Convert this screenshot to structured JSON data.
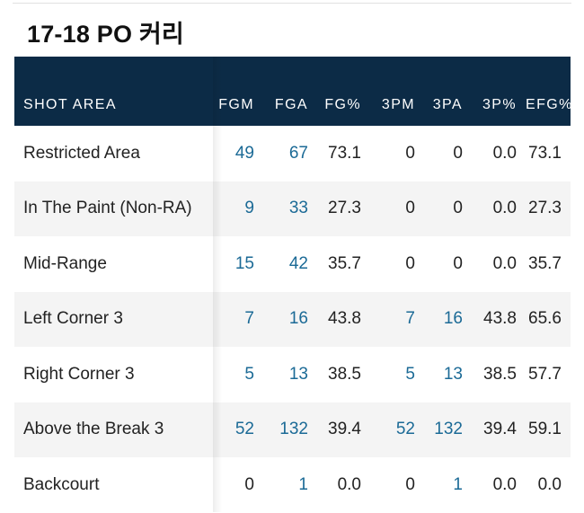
{
  "title": "17-18 PO 커리",
  "table": {
    "headers": [
      "SHOT AREA",
      "FGM",
      "FGA",
      "FG%",
      "3PM",
      "3PA",
      "3P%",
      "EFG%"
    ],
    "rows": [
      {
        "area": "Restricted Area",
        "fgm": "49",
        "fga": "67",
        "fg_pct": "73.1",
        "tpm": "0",
        "tpa": "0",
        "tp_pct": "0.0",
        "efg_pct": "73.1"
      },
      {
        "area": "In The Paint (Non-RA)",
        "fgm": "9",
        "fga": "33",
        "fg_pct": "27.3",
        "tpm": "0",
        "tpa": "0",
        "tp_pct": "0.0",
        "efg_pct": "27.3"
      },
      {
        "area": "Mid-Range",
        "fgm": "15",
        "fga": "42",
        "fg_pct": "35.7",
        "tpm": "0",
        "tpa": "0",
        "tp_pct": "0.0",
        "efg_pct": "35.7"
      },
      {
        "area": "Left Corner 3",
        "fgm": "7",
        "fga": "16",
        "fg_pct": "43.8",
        "tpm": "7",
        "tpa": "16",
        "tp_pct": "43.8",
        "efg_pct": "65.6"
      },
      {
        "area": "Right Corner 3",
        "fgm": "5",
        "fga": "13",
        "fg_pct": "38.5",
        "tpm": "5",
        "tpa": "13",
        "tp_pct": "38.5",
        "efg_pct": "57.7"
      },
      {
        "area": "Above the Break 3",
        "fgm": "52",
        "fga": "132",
        "fg_pct": "39.4",
        "tpm": "52",
        "tpa": "132",
        "tp_pct": "39.4",
        "efg_pct": "59.1"
      },
      {
        "area": "Backcourt",
        "fgm": "0",
        "fga": "1",
        "fg_pct": "0.0",
        "tpm": "0",
        "tpa": "1",
        "tp_pct": "0.0",
        "efg_pct": "0.0"
      }
    ]
  },
  "colors": {
    "header_bg": "#0c2b46",
    "link": "#1b6a96",
    "stripe": "#f4f4f4"
  }
}
